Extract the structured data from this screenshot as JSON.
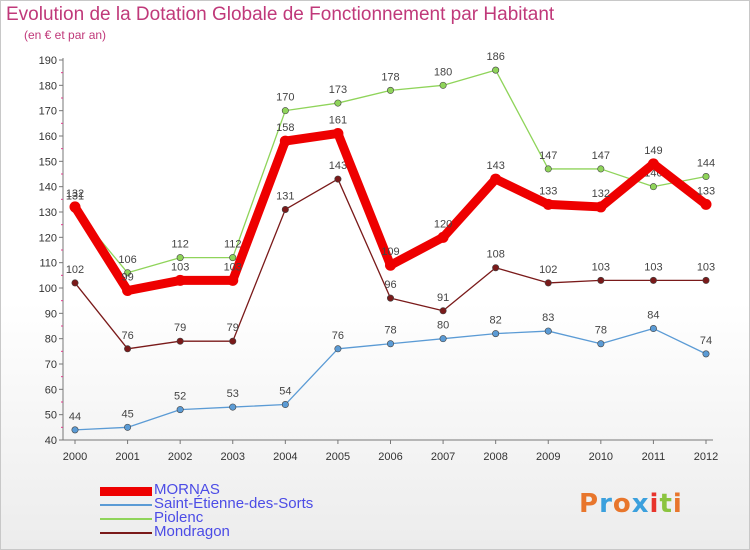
{
  "header": {
    "title": "Evolution de la Dotation Globale de Fonctionnement par Habitant",
    "subtitle": "(en € et par an)"
  },
  "logo": {
    "text": "Proxiti",
    "colors": [
      "#e8762c",
      "#3ba0dd",
      "#e8762c",
      "#3ba0dd",
      "#e8342c",
      "#8bc43f",
      "#e8762c"
    ]
  },
  "chart_data": {
    "type": "line",
    "title": "Evolution de la Dotation Globale de Fonctionnement par Habitant",
    "subtitle": "(en € et par an)",
    "xlabel": "",
    "ylabel": "",
    "ylim": [
      40,
      190
    ],
    "ytick_step": 10,
    "grid": false,
    "legend_position": "bottom-left",
    "x": [
      "2000",
      "2001",
      "2002",
      "2003",
      "2004",
      "2005",
      "2006",
      "2007",
      "2008",
      "2009",
      "2010",
      "2011",
      "2012"
    ],
    "series": [
      {
        "name": "MORNAS",
        "color": "#ee0000",
        "emphasis": true,
        "values": [
          132,
          99,
          103,
          103,
          158,
          161,
          109,
          120,
          143,
          133,
          132,
          149,
          133
        ]
      },
      {
        "name": "Saint-Étienne-des-Sorts",
        "color": "#5b9bd5",
        "emphasis": false,
        "values": [
          44,
          45,
          52,
          53,
          54,
          76,
          78,
          80,
          82,
          83,
          78,
          84,
          74
        ]
      },
      {
        "name": "Piolenc",
        "color": "#8fd45a",
        "emphasis": false,
        "values": [
          131,
          106,
          112,
          112,
          170,
          173,
          178,
          180,
          186,
          147,
          147,
          140,
          144
        ]
      },
      {
        "name": "Mondragon",
        "color": "#7a1a1a",
        "emphasis": false,
        "values": [
          102,
          76,
          79,
          79,
          131,
          143,
          96,
          91,
          108,
          102,
          103,
          103,
          103
        ]
      }
    ]
  }
}
